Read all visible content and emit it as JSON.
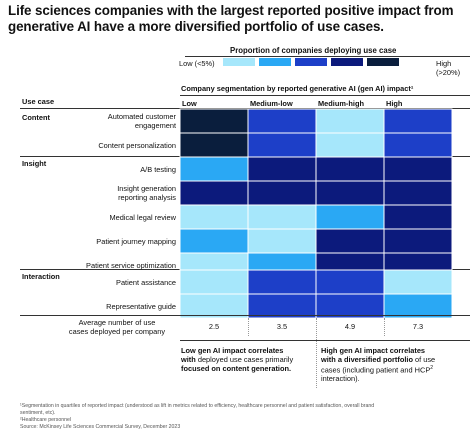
{
  "chart_data": {
    "type": "heatmap",
    "title": "Life sciences companies with the largest reported positive impact from generative AI have a more diversified portfolio of use cases.",
    "legend": {
      "title": "Proportion of companies deploying use case",
      "low_label": "Low (<5%)",
      "high_label": "High (>20%)",
      "colors": [
        "#a6e7fb",
        "#2aa8f4",
        "#1d3fc8",
        "#0c1a7c",
        "#0a1e3d"
      ]
    },
    "segmentation_title": "Company segmentation by reported generative AI (gen AI) impact¹",
    "use_case_header": "Use case",
    "columns": [
      "Low",
      "Medium-low",
      "Medium-high",
      "High"
    ],
    "groups": [
      {
        "name": "Content",
        "rows": [
          0,
          1
        ]
      },
      {
        "name": "Insight",
        "rows": [
          2,
          3,
          4,
          5,
          6
        ]
      },
      {
        "name": "Interaction",
        "rows": [
          7,
          8
        ]
      }
    ],
    "rows": [
      {
        "label": [
          "Automated customer",
          "engagement"
        ],
        "levels": [
          4,
          2,
          0,
          2
        ]
      },
      {
        "label": [
          "Content personalization"
        ],
        "levels": [
          4,
          2,
          0,
          2
        ]
      },
      {
        "label": [
          "A/B testing"
        ],
        "levels": [
          1,
          3,
          3,
          3
        ]
      },
      {
        "label": [
          "Insight generation",
          "reporting analysis"
        ],
        "levels": [
          3,
          3,
          3,
          3
        ]
      },
      {
        "label": [
          "Medical legal review"
        ],
        "levels": [
          0,
          0,
          1,
          3
        ]
      },
      {
        "label": [
          "Patient journey mapping"
        ],
        "levels": [
          1,
          0,
          3,
          3
        ]
      },
      {
        "label": [
          "Patient service optimization"
        ],
        "levels": [
          0,
          1,
          3,
          3
        ]
      },
      {
        "label": [
          "Patient assistance"
        ],
        "levels": [
          0,
          2,
          2,
          0
        ]
      },
      {
        "label": [
          "Representative guide"
        ],
        "levels": [
          0,
          2,
          2,
          1
        ]
      }
    ],
    "avg_label": [
      "Average number of use",
      "cases deployed per company"
    ],
    "avg_values": [
      "2.5",
      "3.5",
      "4.9",
      "7.3"
    ]
  },
  "notes": {
    "low": {
      "bold1": "Low gen AI impact correlates",
      "bold2": "with",
      "plain1": " deployed use cases primarily",
      "bold3": "focused on content generation."
    },
    "high": {
      "bold1": "High gen AI impact correlates",
      "bold2": "with a diversified portfolio",
      "plain1": " of use",
      "plain2": "cases (including patient and HCP",
      "sup": "2",
      "plain3": "interaction)."
    }
  },
  "footnotes": [
    "¹Segmentation in quartiles of reported impact (understood as lift in metrics related to efficiency, healthcare personnel and patient satisfaction, overall brand",
    "sentiment, etc).",
    "²Healthcare personnel",
    "Source: McKinsey Life Sciences Commercial Survey, December 2023"
  ]
}
